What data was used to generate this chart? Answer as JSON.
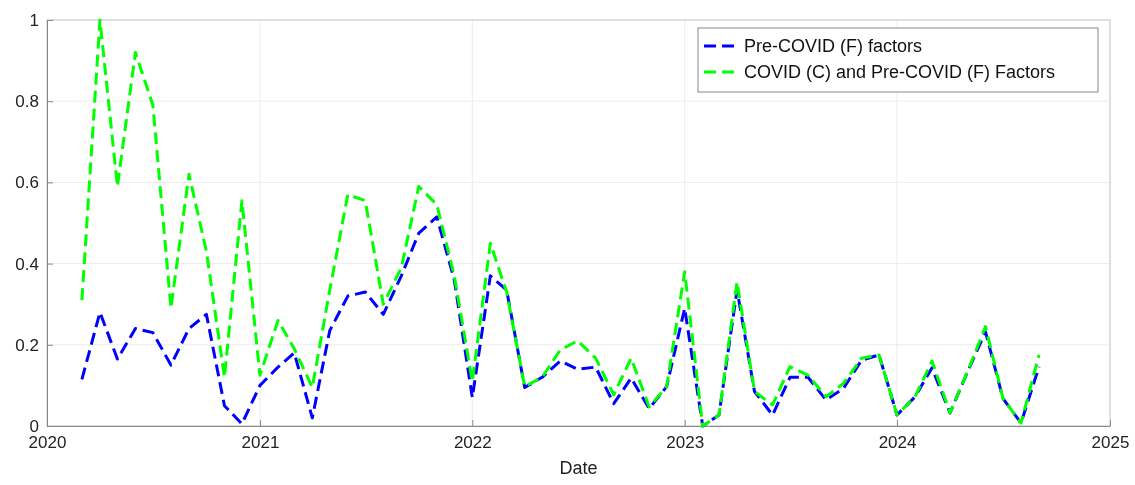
{
  "chart_data": {
    "type": "line",
    "xlabel": "Date",
    "x": [
      "2020-03",
      "2020-04",
      "2020-05",
      "2020-06",
      "2020-07",
      "2020-08",
      "2020-09",
      "2020-10",
      "2020-11",
      "2020-12",
      "2021-01",
      "2021-02",
      "2021-03",
      "2021-04",
      "2021-05",
      "2021-06",
      "2021-07",
      "2021-08",
      "2021-09",
      "2021-10",
      "2021-11",
      "2021-12",
      "2022-01",
      "2022-02",
      "2022-03",
      "2022-04",
      "2022-05",
      "2022-06",
      "2022-07",
      "2022-08",
      "2022-09",
      "2022-10",
      "2022-11",
      "2022-12",
      "2023-01",
      "2023-02",
      "2023-03",
      "2023-04",
      "2023-05",
      "2023-06",
      "2023-07",
      "2023-08",
      "2023-09",
      "2023-10",
      "2023-11",
      "2023-12",
      "2024-01",
      "2024-02",
      "2024-03",
      "2024-04",
      "2024-05",
      "2024-06",
      "2024-07",
      "2024-08",
      "2024-09"
    ],
    "series": [
      {
        "name": "Pre-COVID (F) factors",
        "color": "#0000ff",
        "line_style": "dashed",
        "values": [
          0.115,
          0.28,
          0.165,
          0.24,
          0.23,
          0.15,
          0.24,
          0.275,
          0.05,
          0.005,
          0.1,
          0.145,
          0.18,
          0.02,
          0.235,
          0.32,
          0.33,
          0.275,
          0.37,
          0.475,
          0.515,
          0.36,
          0.07,
          0.37,
          0.335,
          0.095,
          0.12,
          0.16,
          0.14,
          0.145,
          0.055,
          0.118,
          0.043,
          0.097,
          0.29,
          0.0,
          0.027,
          0.335,
          0.085,
          0.027,
          0.12,
          0.12,
          0.064,
          0.093,
          0.162,
          0.175,
          0.027,
          0.072,
          0.143,
          0.032,
          0.133,
          0.232,
          0.068,
          0.007,
          0.146
        ]
      },
      {
        "name": "COVID (C) and Pre-COVID (F) Factors",
        "color": "#00ff00",
        "line_style": "dashed",
        "values": [
          0.31,
          1.0,
          0.59,
          0.92,
          0.79,
          0.29,
          0.62,
          0.43,
          0.12,
          0.555,
          0.125,
          0.26,
          0.19,
          0.095,
          0.335,
          0.57,
          0.555,
          0.3,
          0.39,
          0.59,
          0.545,
          0.37,
          0.11,
          0.45,
          0.33,
          0.097,
          0.12,
          0.187,
          0.21,
          0.167,
          0.077,
          0.167,
          0.047,
          0.097,
          0.38,
          0.0,
          0.027,
          0.355,
          0.085,
          0.052,
          0.146,
          0.125,
          0.072,
          0.105,
          0.167,
          0.175,
          0.027,
          0.072,
          0.16,
          0.032,
          0.133,
          0.245,
          0.068,
          0.007,
          0.175
        ]
      }
    ],
    "xlim": [
      "2020",
      "2025"
    ],
    "xticks": [
      {
        "value": "2020",
        "label": "2020"
      },
      {
        "value": "2021",
        "label": "2021"
      },
      {
        "value": "2022",
        "label": "2022"
      },
      {
        "value": "2023",
        "label": "2023"
      },
      {
        "value": "2024",
        "label": "2024"
      },
      {
        "value": "2025",
        "label": "2025"
      }
    ],
    "ylim": [
      0,
      1
    ],
    "yticks": [
      0,
      0.2,
      0.4,
      0.6,
      0.8,
      1
    ],
    "grid": true,
    "legend": "top right",
    "marker": "none"
  }
}
